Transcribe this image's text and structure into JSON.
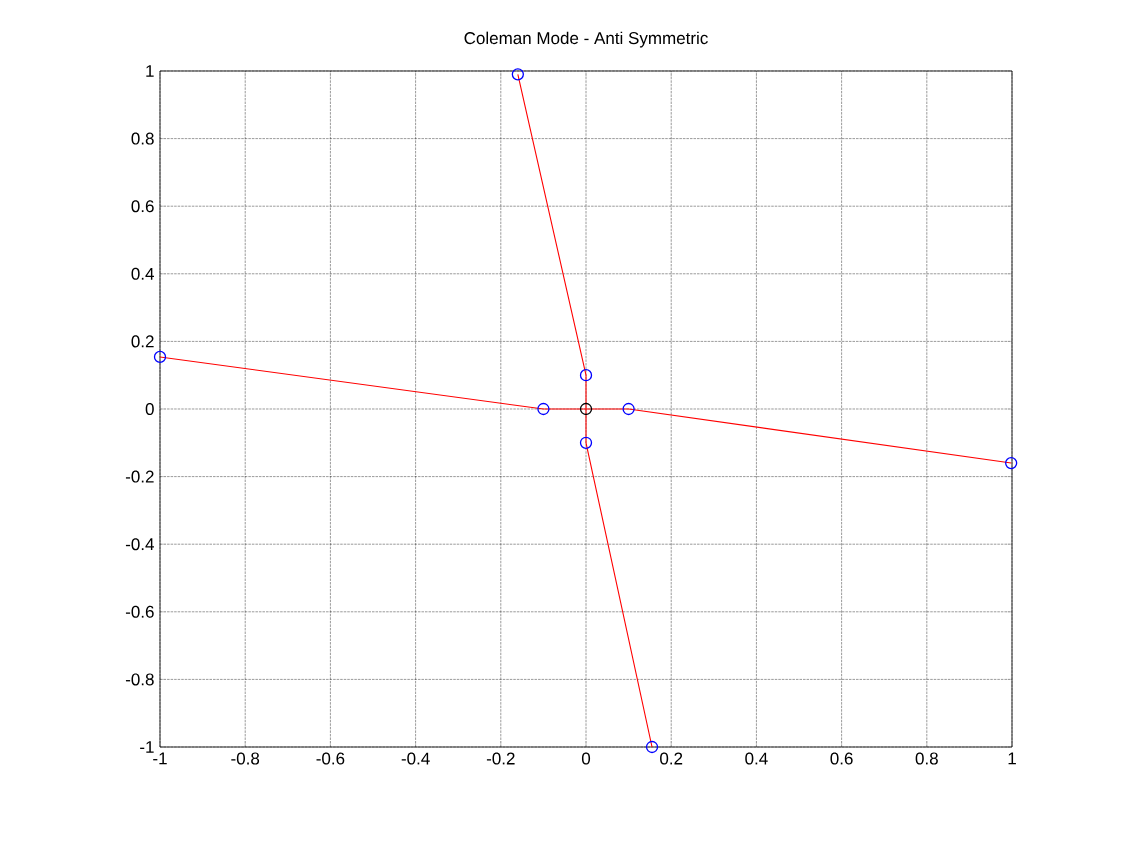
{
  "chart_data": {
    "type": "line",
    "title": "Coleman Mode - Anti Symmetric",
    "xlim": [
      -1,
      1
    ],
    "ylim": [
      -1,
      1
    ],
    "xticks": [
      -1,
      -0.8,
      -0.6,
      -0.4,
      -0.2,
      0,
      0.2,
      0.4,
      0.6,
      0.8,
      1
    ],
    "yticks": [
      -1,
      -0.8,
      -0.6,
      -0.4,
      -0.2,
      0,
      0.2,
      0.4,
      0.6,
      0.8,
      1
    ],
    "grid": true,
    "series": [
      {
        "color": "#ff0000",
        "marker": "none",
        "x": [
          -0.16,
          0,
          0
        ],
        "values": [
          0.99,
          0.1,
          0
        ]
      },
      {
        "color": "#ff0000",
        "marker": "none",
        "x": [
          -1,
          -0.1,
          0
        ],
        "values": [
          0.154,
          0,
          0
        ]
      },
      {
        "color": "#ff0000",
        "marker": "none",
        "x": [
          0.155,
          0,
          0
        ],
        "values": [
          -1,
          -0.1,
          0
        ]
      },
      {
        "color": "#ff0000",
        "marker": "none",
        "x": [
          0.998,
          0.1,
          0
        ],
        "values": [
          -0.16,
          0,
          0
        ]
      },
      {
        "type": "scatter",
        "color": "#0000ff",
        "marker": "circle",
        "x": [
          -0.16,
          0,
          -1,
          -0.1,
          0.155,
          0,
          0.998,
          0.1
        ],
        "values": [
          0.99,
          0.1,
          0.154,
          0,
          -1,
          -0.1,
          -0.16,
          0
        ]
      },
      {
        "type": "scatter",
        "color": "#000000",
        "marker": "circle",
        "x": [
          0
        ],
        "values": [
          0
        ]
      }
    ]
  }
}
